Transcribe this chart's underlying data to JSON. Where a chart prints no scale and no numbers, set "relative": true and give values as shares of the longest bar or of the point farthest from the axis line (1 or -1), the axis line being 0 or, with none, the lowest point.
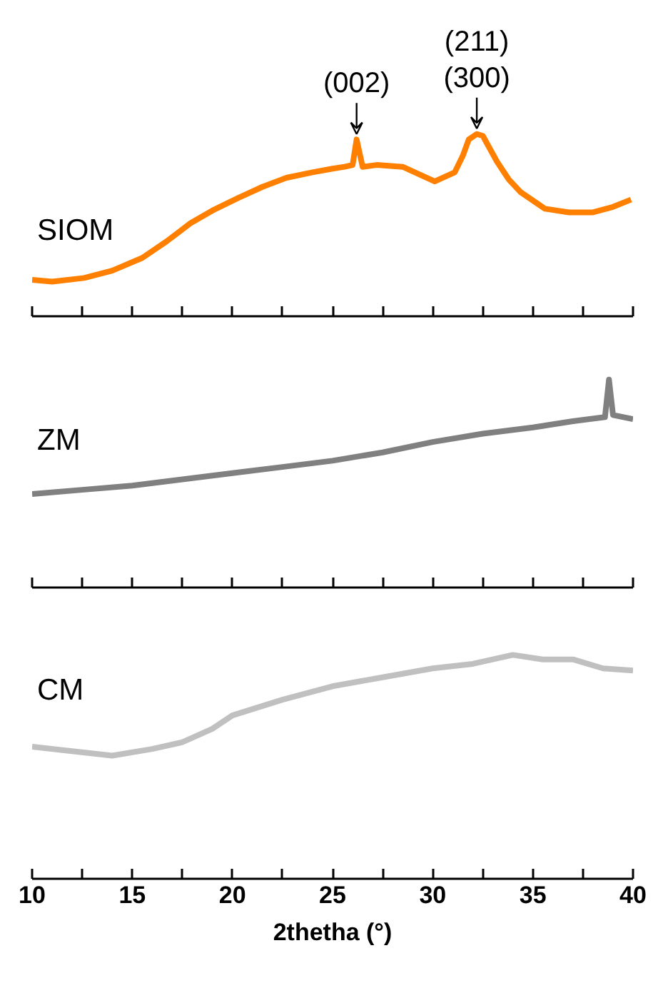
{
  "chart_data": [
    {
      "type": "line",
      "relative": true,
      "xlim": [
        10,
        40
      ],
      "xticks": [
        10,
        {
          "value": 12.5,
          "label": null
        },
        15,
        {
          "value": 17.5,
          "label": null
        },
        20,
        {
          "value": 22.5,
          "label": null
        },
        25,
        {
          "value": 27.5,
          "label": null
        },
        30,
        {
          "value": 32.5,
          "label": null
        },
        35,
        {
          "value": 37.5,
          "label": null
        },
        40
      ],
      "tick_labels": false,
      "grid": false,
      "legend": false,
      "x": [
        10,
        11,
        12.6,
        14,
        15.5,
        16.7,
        17.9,
        19,
        20.3,
        21.5,
        22.7,
        24,
        25,
        25.6,
        26,
        26.2,
        26.5,
        27.2,
        28.5,
        29.3,
        30.1,
        31.1,
        31.5,
        31.8,
        32.2,
        32.5,
        33.2,
        33.8,
        34.4,
        35.6,
        36.8,
        38,
        39,
        39.9
      ],
      "series": [
        {
          "name": "SIOM",
          "color": "#ff8000",
          "values": [
            0.2,
            0.19,
            0.21,
            0.25,
            0.32,
            0.41,
            0.51,
            0.58,
            0.65,
            0.71,
            0.76,
            0.79,
            0.81,
            0.82,
            0.83,
            0.97,
            0.82,
            0.83,
            0.82,
            0.78,
            0.74,
            0.79,
            0.88,
            0.97,
            1.0,
            0.99,
            0.85,
            0.75,
            0.68,
            0.59,
            0.57,
            0.57,
            0.6,
            0.64
          ]
        }
      ],
      "annotations": [
        {
          "text": "(002)",
          "x": 26.2,
          "y": 0.97
        },
        {
          "text": "(211)\n(300)",
          "x": 32.2,
          "y": 1.0
        }
      ]
    },
    {
      "type": "line",
      "relative": true,
      "xlim": [
        10,
        40
      ],
      "xticks": [
        10,
        {
          "value": 12.5,
          "label": null
        },
        15,
        {
          "value": 17.5,
          "label": null
        },
        20,
        {
          "value": 22.5,
          "label": null
        },
        25,
        {
          "value": 27.5,
          "label": null
        },
        30,
        {
          "value": 32.5,
          "label": null
        },
        35,
        {
          "value": 37.5,
          "label": null
        },
        40
      ],
      "tick_labels": false,
      "grid": false,
      "legend": false,
      "x": [
        10,
        12.5,
        15,
        17.5,
        20,
        22.5,
        25,
        27.5,
        30,
        32.5,
        35,
        37,
        38.6,
        38.8,
        39,
        40
      ],
      "series": [
        {
          "name": "ZM",
          "color": "#808080",
          "values": [
            0.45,
            0.47,
            0.49,
            0.52,
            0.55,
            0.58,
            0.61,
            0.65,
            0.7,
            0.74,
            0.77,
            0.8,
            0.82,
            1.0,
            0.83,
            0.81
          ]
        }
      ]
    },
    {
      "type": "line",
      "relative": true,
      "xlim": [
        10,
        40
      ],
      "xticks": [
        10,
        {
          "value": 12.5,
          "label": null
        },
        15,
        {
          "value": 17.5,
          "label": null
        },
        20,
        {
          "value": 22.5,
          "label": null
        },
        25,
        {
          "value": 27.5,
          "label": null
        },
        30,
        {
          "value": 32.5,
          "label": null
        },
        35,
        {
          "value": 37.5,
          "label": null
        },
        40
      ],
      "tick_labels": "x",
      "grid": false,
      "legend": false,
      "xlabel": "2thetha (°)",
      "x": [
        10,
        12,
        14,
        16,
        17.5,
        19,
        20,
        22.5,
        25,
        27.5,
        30,
        32,
        34,
        35.5,
        37,
        38.5,
        40
      ],
      "series": [
        {
          "name": "CM",
          "color": "#c0c0c0",
          "values": [
            0.59,
            0.57,
            0.55,
            0.58,
            0.61,
            0.67,
            0.73,
            0.8,
            0.86,
            0.9,
            0.94,
            0.96,
            1.0,
            0.98,
            0.98,
            0.94,
            0.93
          ]
        }
      ]
    }
  ]
}
